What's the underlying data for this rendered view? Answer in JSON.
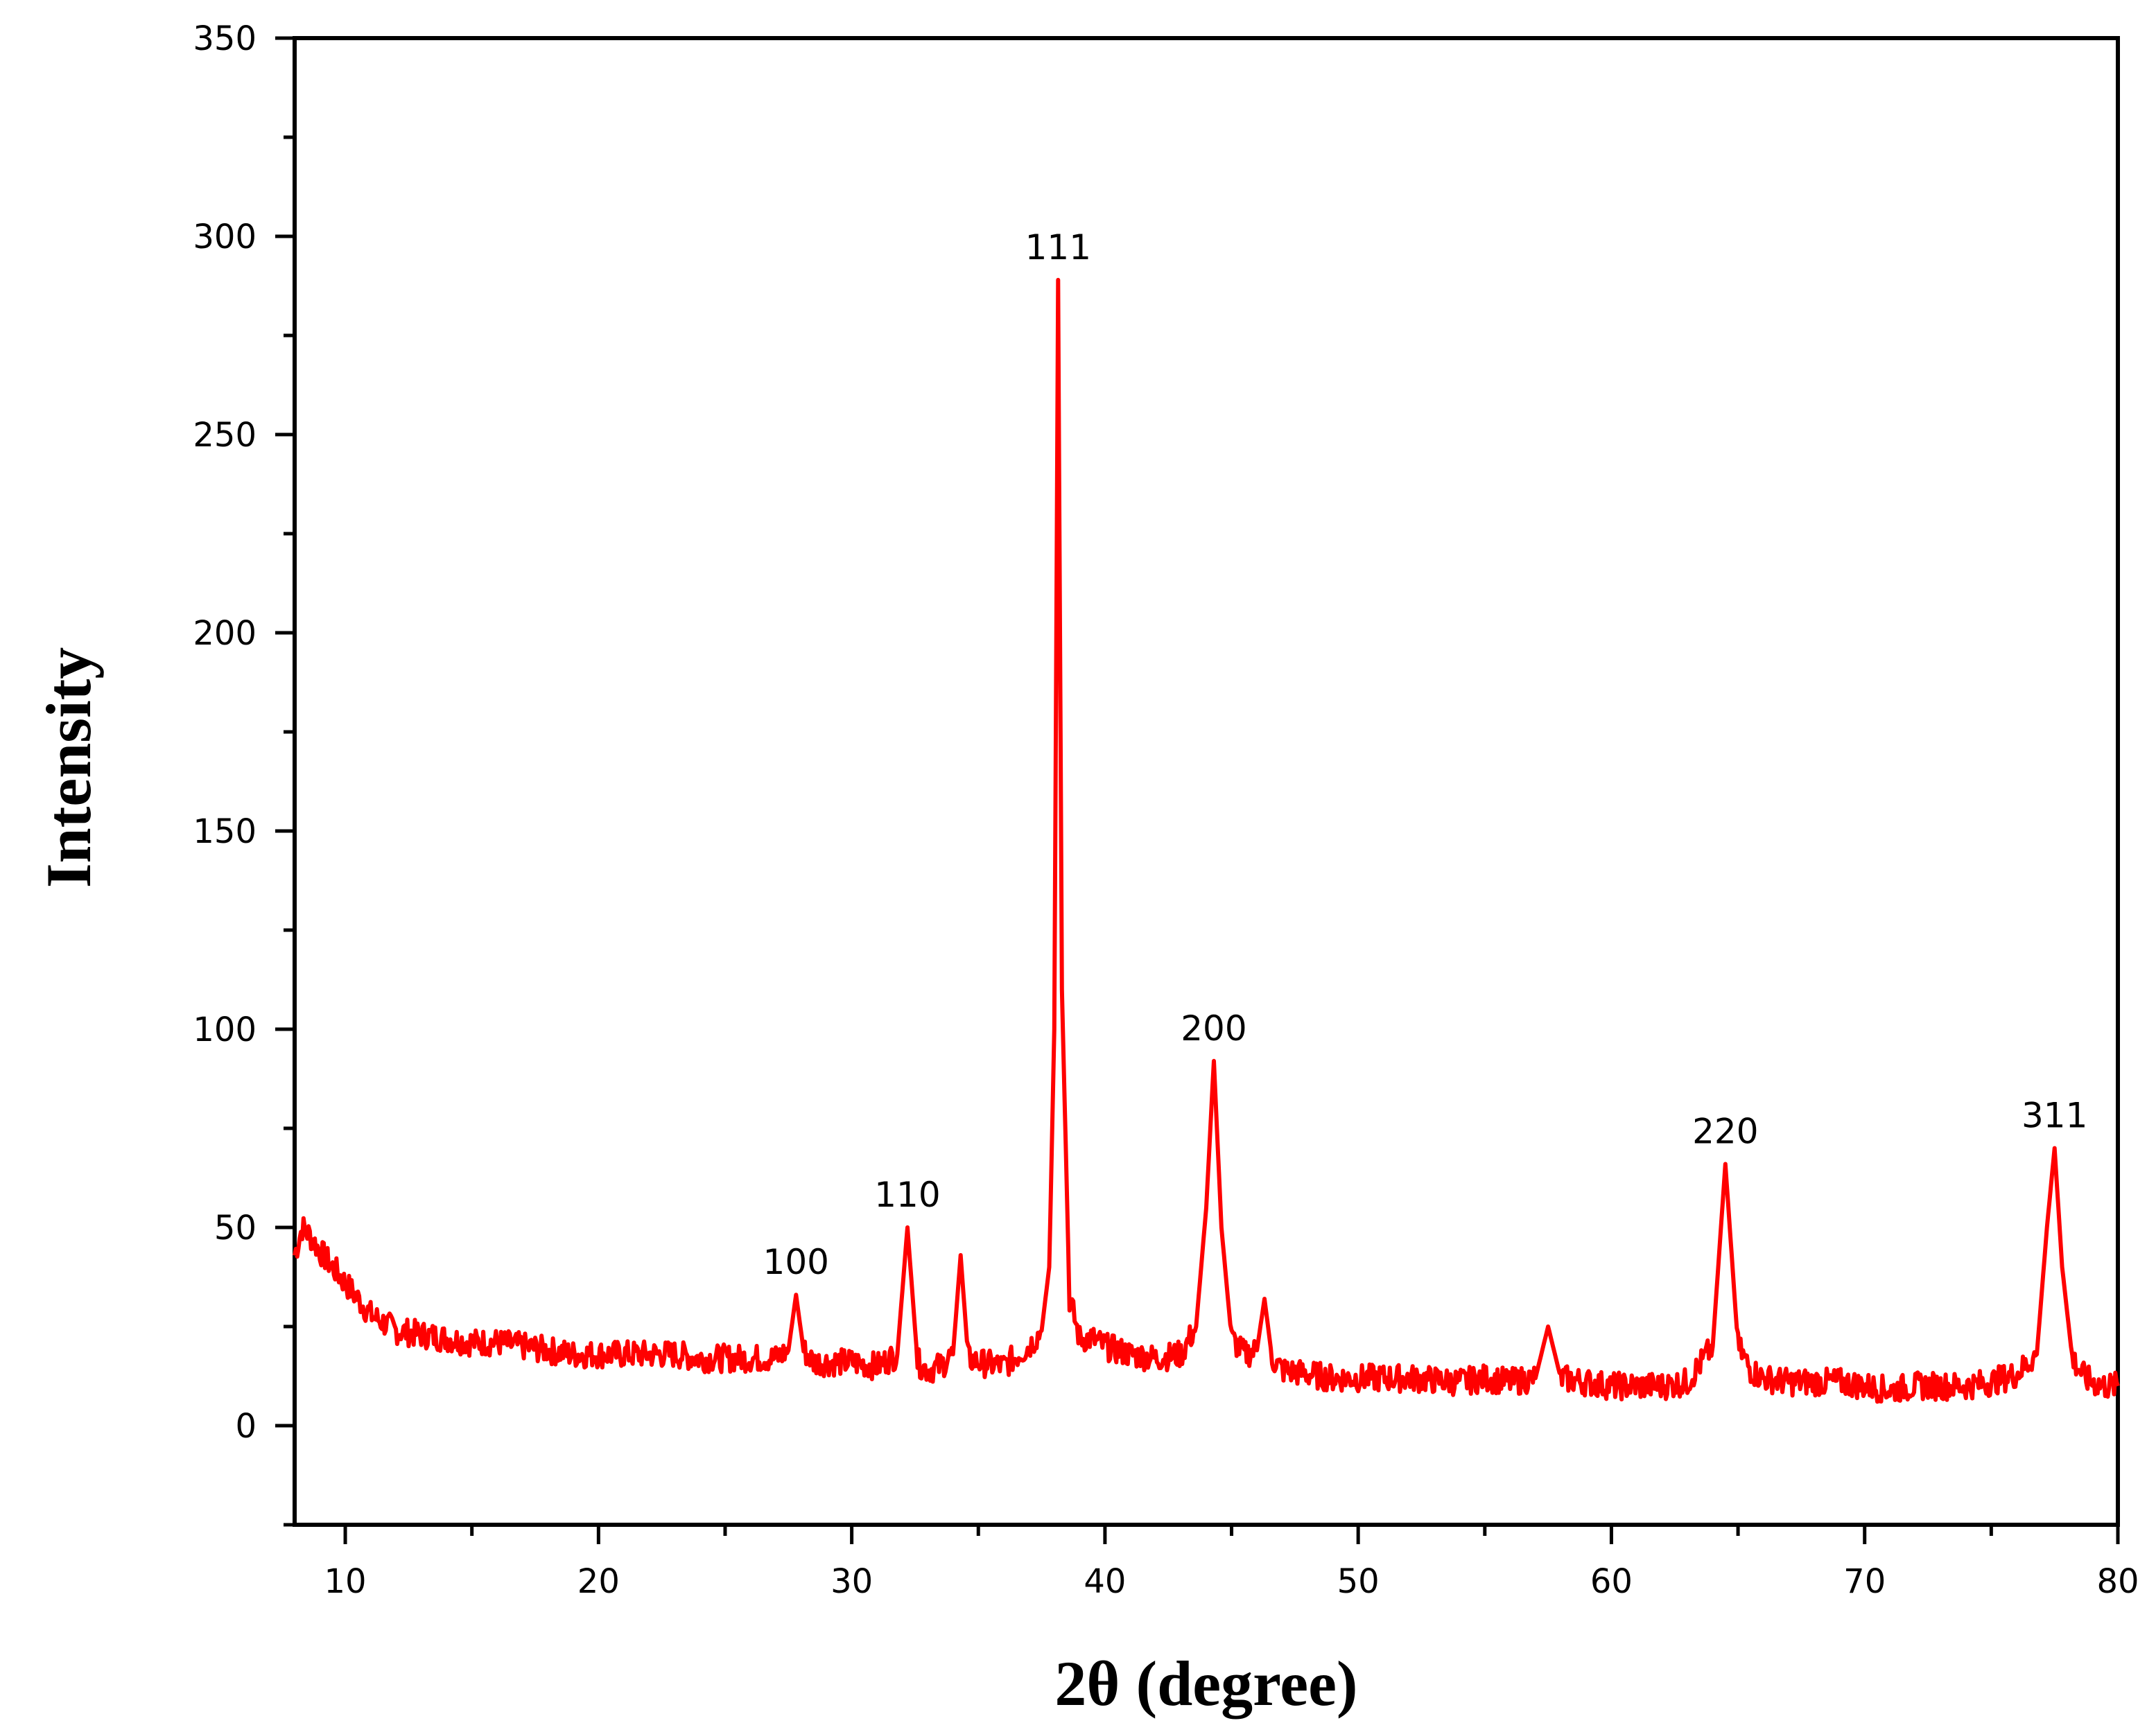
{
  "chart_data": {
    "type": "line",
    "title": "",
    "xlabel": "2θ (degree)",
    "ylabel": "Intensity",
    "xlim": [
      8,
      80
    ],
    "ylim": [
      -25,
      350
    ],
    "x_ticks": [
      10,
      20,
      30,
      40,
      50,
      60,
      70,
      80
    ],
    "y_ticks": [
      0,
      50,
      100,
      150,
      200,
      250,
      300,
      350
    ],
    "grid": false,
    "legend": "none",
    "line_color": "#ff0000",
    "series": [
      {
        "x": [
          8.0,
          8.3,
          8.6,
          9.0,
          9.5,
          10.0,
          10.5,
          11.0,
          11.5,
          12.0,
          13.0,
          14.0,
          15.0,
          16.0,
          17.0,
          18.0,
          19.0,
          20.0,
          21.0,
          22.0,
          23.0,
          24.0,
          25.0,
          26.0,
          27.0,
          27.5,
          27.8,
          28.1,
          28.5,
          29.0,
          30.0,
          31.0,
          31.8,
          32.2,
          32.6,
          33.0,
          33.5,
          34.0,
          34.3,
          34.6,
          35.0,
          36.0,
          37.0,
          37.5,
          37.8,
          38.0,
          38.15,
          38.3,
          38.6,
          39.0,
          39.5,
          40.0,
          41.0,
          42.0,
          43.0,
          43.6,
          44.0,
          44.3,
          44.6,
          45.0,
          45.5,
          46.0,
          46.3,
          46.6,
          47.0,
          48.0,
          49.0,
          50.0,
          52.0,
          54.0,
          55.0,
          56.0,
          57.0,
          57.5,
          58.0,
          59.0,
          60.0,
          62.0,
          63.0,
          64.0,
          64.5,
          65.0,
          65.5,
          66.0,
          67.0,
          68.0,
          69.0,
          70.0,
          71.0,
          72.0,
          73.0,
          74.0,
          75.0,
          76.0,
          76.8,
          77.2,
          77.5,
          77.8,
          78.2,
          78.7,
          79.0,
          79.5,
          80.0
        ],
        "values": [
          43,
          50,
          48,
          44,
          40,
          36,
          32,
          28,
          26,
          24,
          23,
          22,
          21,
          21,
          20,
          19,
          18,
          18,
          18,
          18,
          18,
          17,
          17,
          17,
          17,
          19,
          33,
          19,
          16,
          16,
          16,
          15,
          18,
          50,
          16,
          14,
          15,
          18,
          43,
          17,
          16,
          15,
          20,
          24,
          40,
          100,
          289,
          110,
          32,
          22,
          22,
          20,
          18,
          17,
          18,
          25,
          55,
          92,
          50,
          22,
          18,
          19,
          32,
          17,
          14,
          13,
          12,
          12,
          12,
          11,
          12,
          11,
          12,
          25,
          12,
          11,
          10,
          10,
          11,
          20,
          66,
          20,
          14,
          12,
          11,
          11,
          11,
          10,
          9,
          10,
          10,
          10,
          11,
          13,
          18,
          50,
          70,
          40,
          17,
          12,
          11,
          10,
          10
        ]
      }
    ],
    "annotations": [
      {
        "text": "100",
        "x": 27.8,
        "y": 33
      },
      {
        "text": "110",
        "x": 32.2,
        "y": 50
      },
      {
        "text": "111",
        "x": 38.15,
        "y": 289
      },
      {
        "text": "200",
        "x": 44.3,
        "y": 92
      },
      {
        "text": "220",
        "x": 64.5,
        "y": 66
      },
      {
        "text": "311",
        "x": 77.5,
        "y": 70
      }
    ]
  }
}
